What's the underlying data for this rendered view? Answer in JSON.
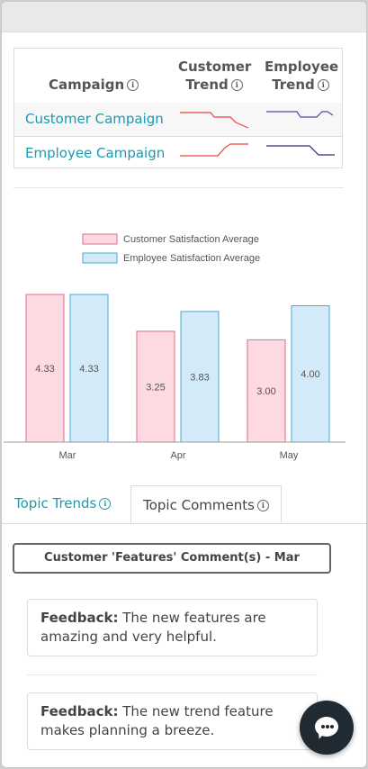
{
  "campaign_table": {
    "headers": {
      "campaign": "Campaign",
      "customer_trend_line1": "Customer",
      "customer_trend_line2": "Trend",
      "employee_trend_line1": "Employee",
      "employee_trend_line2": "Trend"
    },
    "rows": [
      {
        "name": "Customer Campaign",
        "customer_trend_color": "#e8473b",
        "employee_trend_color": "#4a4aa8"
      },
      {
        "name": "Employee Campaign",
        "customer_trend_color": "#e8473b",
        "employee_trend_color": "#2c2c7c"
      }
    ]
  },
  "chart_data": {
    "type": "bar",
    "categories": [
      "Mar",
      "Apr",
      "May"
    ],
    "series": [
      {
        "name": "Customer Satisfaction Average",
        "values": [
          4.33,
          3.25,
          3.0
        ],
        "labels": [
          "4.33",
          "3.25",
          "3.00"
        ],
        "fill": "#fdd9e2",
        "stroke": "#e06a8a"
      },
      {
        "name": "Employee Satisfaction Average",
        "values": [
          4.33,
          3.83,
          4.0
        ],
        "labels": [
          "4.33",
          "3.83",
          "4.00"
        ],
        "fill": "#d3eaf8",
        "stroke": "#4aa8d8"
      }
    ],
    "ylim": [
      0,
      5
    ],
    "grid": false,
    "legend": "top-center"
  },
  "tabs": {
    "topic_trends": "Topic Trends",
    "topic_comments": "Topic Comments"
  },
  "comments": {
    "banner": "Customer 'Features' Comment(s) - Mar",
    "items": [
      {
        "label": "Feedback:",
        "text": " The new features are amazing and very helpful."
      },
      {
        "label": "Feedback:",
        "text": " The new trend feature makes planning a breeze."
      }
    ]
  },
  "chat": {
    "icon": "chat-bubble-icon"
  },
  "info_icon": "i"
}
